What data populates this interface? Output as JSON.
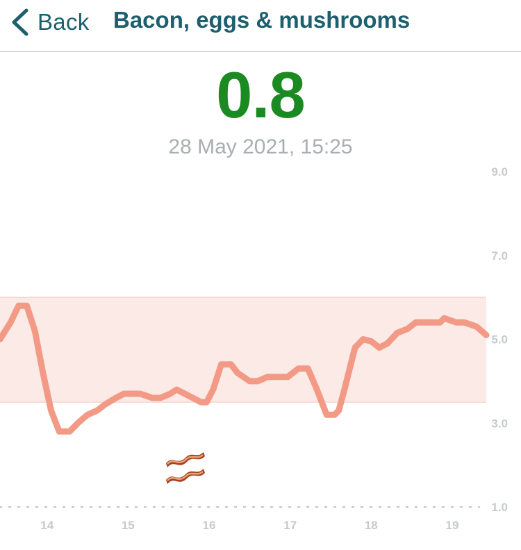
{
  "nav": {
    "back_label": "Back",
    "title": "Bacon, eggs & mushrooms"
  },
  "reading": {
    "value": "0.8",
    "timestamp": "28 May 2021, 15:25",
    "value_color": "#1b8a22"
  },
  "icons": {
    "back": "chevron-left-icon",
    "meal_marker": "bacon-icon"
  },
  "colors": {
    "accent": "#1d5f6e",
    "line": "#f39a87",
    "target_band": "#fbeae6",
    "muted_text": "#a8aeb2"
  },
  "chart_data": {
    "type": "line",
    "title": "",
    "xlabel": "",
    "ylabel": "",
    "xlim": [
      13.42,
      19.42
    ],
    "ylim": [
      1.0,
      9.0
    ],
    "x_ticks": [
      14,
      15,
      16,
      17,
      18,
      19
    ],
    "x_tick_labels": [
      "14",
      "15",
      "16",
      "17",
      "18",
      "19"
    ],
    "y_ticks": [
      1.0,
      3.0,
      5.0,
      7.0,
      9.0
    ],
    "y_tick_labels": [
      "1.0",
      "3.0",
      "5.0",
      "7.0",
      "9.0"
    ],
    "target_range": [
      3.5,
      6.0
    ],
    "grid": false,
    "meal_marker_time": 15.7,
    "series": [
      {
        "name": "",
        "x": [
          13.42,
          13.55,
          13.65,
          13.75,
          13.85,
          13.95,
          14.05,
          14.15,
          14.28,
          14.38,
          14.5,
          14.62,
          14.72,
          14.85,
          14.95,
          15.05,
          15.15,
          15.3,
          15.4,
          15.52,
          15.6,
          15.7,
          15.8,
          15.9,
          15.97,
          16.05,
          16.15,
          16.27,
          16.35,
          16.5,
          16.6,
          16.72,
          16.85,
          16.97,
          17.1,
          17.22,
          17.33,
          17.45,
          17.55,
          17.6,
          17.67,
          17.8,
          17.9,
          18.0,
          18.1,
          18.2,
          18.32,
          18.45,
          18.55,
          18.67,
          18.8,
          18.85,
          18.9,
          19.05,
          19.15,
          19.3,
          19.42
        ],
        "y": [
          5.0,
          5.4,
          5.8,
          5.8,
          5.2,
          4.2,
          3.3,
          2.8,
          2.8,
          3.0,
          3.2,
          3.3,
          3.45,
          3.6,
          3.7,
          3.7,
          3.7,
          3.6,
          3.6,
          3.7,
          3.8,
          3.7,
          3.6,
          3.5,
          3.5,
          3.8,
          4.4,
          4.4,
          4.2,
          4.0,
          4.0,
          4.1,
          4.1,
          4.1,
          4.3,
          4.3,
          3.8,
          3.2,
          3.2,
          3.3,
          3.8,
          4.8,
          5.0,
          4.95,
          4.8,
          4.9,
          5.15,
          5.25,
          5.4,
          5.4,
          5.4,
          5.4,
          5.5,
          5.4,
          5.4,
          5.3,
          5.1
        ]
      }
    ]
  }
}
